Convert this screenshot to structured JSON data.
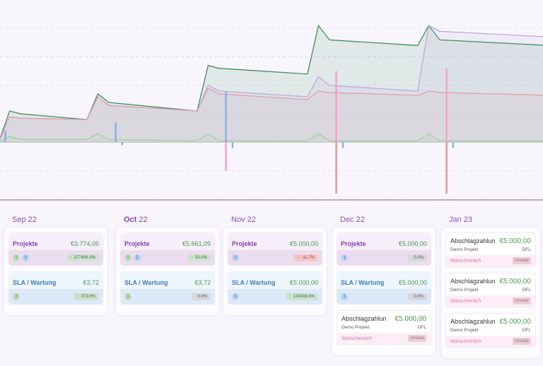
{
  "months": [
    {
      "name": "Sep",
      "bold": false,
      "year": "22"
    },
    {
      "name": "Oct",
      "bold": true,
      "year": "22"
    },
    {
      "name": "Nov",
      "bold": false,
      "year": "22"
    },
    {
      "name": "Dec",
      "bold": false,
      "year": "22"
    },
    {
      "name": "Jan",
      "bold": false,
      "year": "23"
    }
  ],
  "columns": [
    {
      "projekte": {
        "label": "Projekte",
        "amount": "€3.774,06",
        "badges": [
          "1",
          "1"
        ],
        "pct": "377406.0%",
        "dir": "up"
      },
      "sla": {
        "label": "SLA / Wartung",
        "amount": "€3,72",
        "badges": [
          "1"
        ],
        "pct": "372.0%",
        "dir": "up"
      },
      "entries": []
    },
    {
      "projekte": {
        "label": "Projekte",
        "amount": "€5.661,09",
        "badges": [
          "1",
          "2"
        ],
        "pct": "50.0%",
        "dir": "up"
      },
      "sla": {
        "label": "SLA / Wartung",
        "amount": "€3,72",
        "badges": [
          "1"
        ],
        "pct": "0.0%",
        "dir": "neutral"
      },
      "entries": []
    },
    {
      "projekte": {
        "label": "Projekte",
        "amount": "€5.000,00",
        "badges": [
          "1"
        ],
        "pct": "-11.7%",
        "dir": "down"
      },
      "sla": {
        "label": "SLA / Wartung",
        "amount": "€5.000,00",
        "badges": [
          "1"
        ],
        "pct": "134308.6%",
        "dir": "up"
      },
      "entries": []
    },
    {
      "projekte": {
        "label": "Projekte",
        "amount": "€5.000,00",
        "badges": [
          "1"
        ],
        "pct": "0.0%",
        "dir": "neutral"
      },
      "sla": {
        "label": "SLA / Wartung",
        "amount": "€5.000,00",
        "badges": [
          "1"
        ],
        "pct": "0.0%",
        "dir": "neutral"
      },
      "entries": [
        {
          "title": "Abschlagzahlun",
          "amount": "€5.000,00",
          "project": "Demo Projekt",
          "code": "DFL",
          "status": "Warscheinlich",
          "tag": "Umsatz"
        }
      ]
    },
    {
      "projekte": null,
      "sla": null,
      "entries": [
        {
          "title": "Abschlagzahlun",
          "amount": "€5.000,00",
          "project": "Demo Projekt",
          "code": "DFL",
          "status": "Warscheinlich",
          "tag": "Umsatz"
        },
        {
          "title": "Abschlagzahlun",
          "amount": "€5.000,00",
          "project": "Demo Projekt",
          "code": "DFL",
          "status": "Warscheinlich",
          "tag": "Umsatz"
        },
        {
          "title": "Abschlagzahlun",
          "amount": "€5.000,00",
          "project": "Demo Projekt",
          "code": "DFL",
          "status": "Warscheinlich",
          "tag": "Umsatz"
        }
      ]
    }
  ],
  "chart_data": {
    "type": "area",
    "x": [
      0,
      0.5,
      1,
      4,
      4.5,
      5,
      9,
      9.5,
      10,
      14,
      14.5,
      15,
      19,
      19.5,
      20,
      25
    ],
    "series": [
      {
        "values": [
          0,
          1.1,
          1.0,
          0.8,
          1.7,
          1.4,
          1.1,
          2.7,
          2.6,
          2.4,
          4.1,
          3.6,
          3.4,
          4.1,
          3.6,
          3.4
        ],
        "color": "#3f8f5a"
      },
      {
        "values": [
          0,
          0.9,
          0.85,
          0.8,
          1.6,
          1.3,
          1.1,
          2.0,
          1.8,
          1.6,
          2.3,
          2.0,
          1.8,
          4.1,
          3.9,
          3.7
        ],
        "color": "#b9a9e0"
      },
      {
        "values": [
          0,
          0.9,
          0.85,
          0.8,
          1.6,
          1.3,
          1.1,
          1.9,
          1.7,
          1.5,
          1.8,
          1.75,
          1.65,
          1.8,
          1.75,
          1.65
        ],
        "color": "#e0a0b0"
      },
      {
        "values": [
          0,
          0.2,
          0.1,
          0.1,
          0.3,
          0.1,
          0.05,
          0.3,
          0.05,
          0.05,
          0.3,
          0.05,
          0.05,
          0.3,
          0.05,
          0.05
        ],
        "color": "#9ed39e"
      }
    ],
    "spikes": [
      {
        "x": 0.3,
        "value": 0.4,
        "color": "#7fb2ea"
      },
      {
        "x": 5.3,
        "value": 0.7,
        "color": "#7fb2ea"
      },
      {
        "x": 5.6,
        "value": -0.1,
        "color": "#7fb2ea"
      },
      {
        "x": 10.3,
        "value": 1.8,
        "color": "#7fb2ea"
      },
      {
        "x": 10.3,
        "value": -1.0,
        "color": "#f0a0d0"
      },
      {
        "x": 10.6,
        "value": -0.2,
        "color": "#7fb2ea"
      },
      {
        "x": 15.3,
        "value": 2.5,
        "color": "#f0a0d0"
      },
      {
        "x": 15.3,
        "value": -1.8,
        "color": "#e59090"
      },
      {
        "x": 15.6,
        "value": -0.2,
        "color": "#7fb2ea"
      },
      {
        "x": 20.3,
        "value": 2.6,
        "color": "#f0a0d0"
      },
      {
        "x": 20.3,
        "value": -1.8,
        "color": "#e59090"
      },
      {
        "x": 20.6,
        "value": -0.2,
        "color": "#7fb2ea"
      }
    ],
    "ylim": [
      -2,
      5
    ],
    "grid": true
  }
}
